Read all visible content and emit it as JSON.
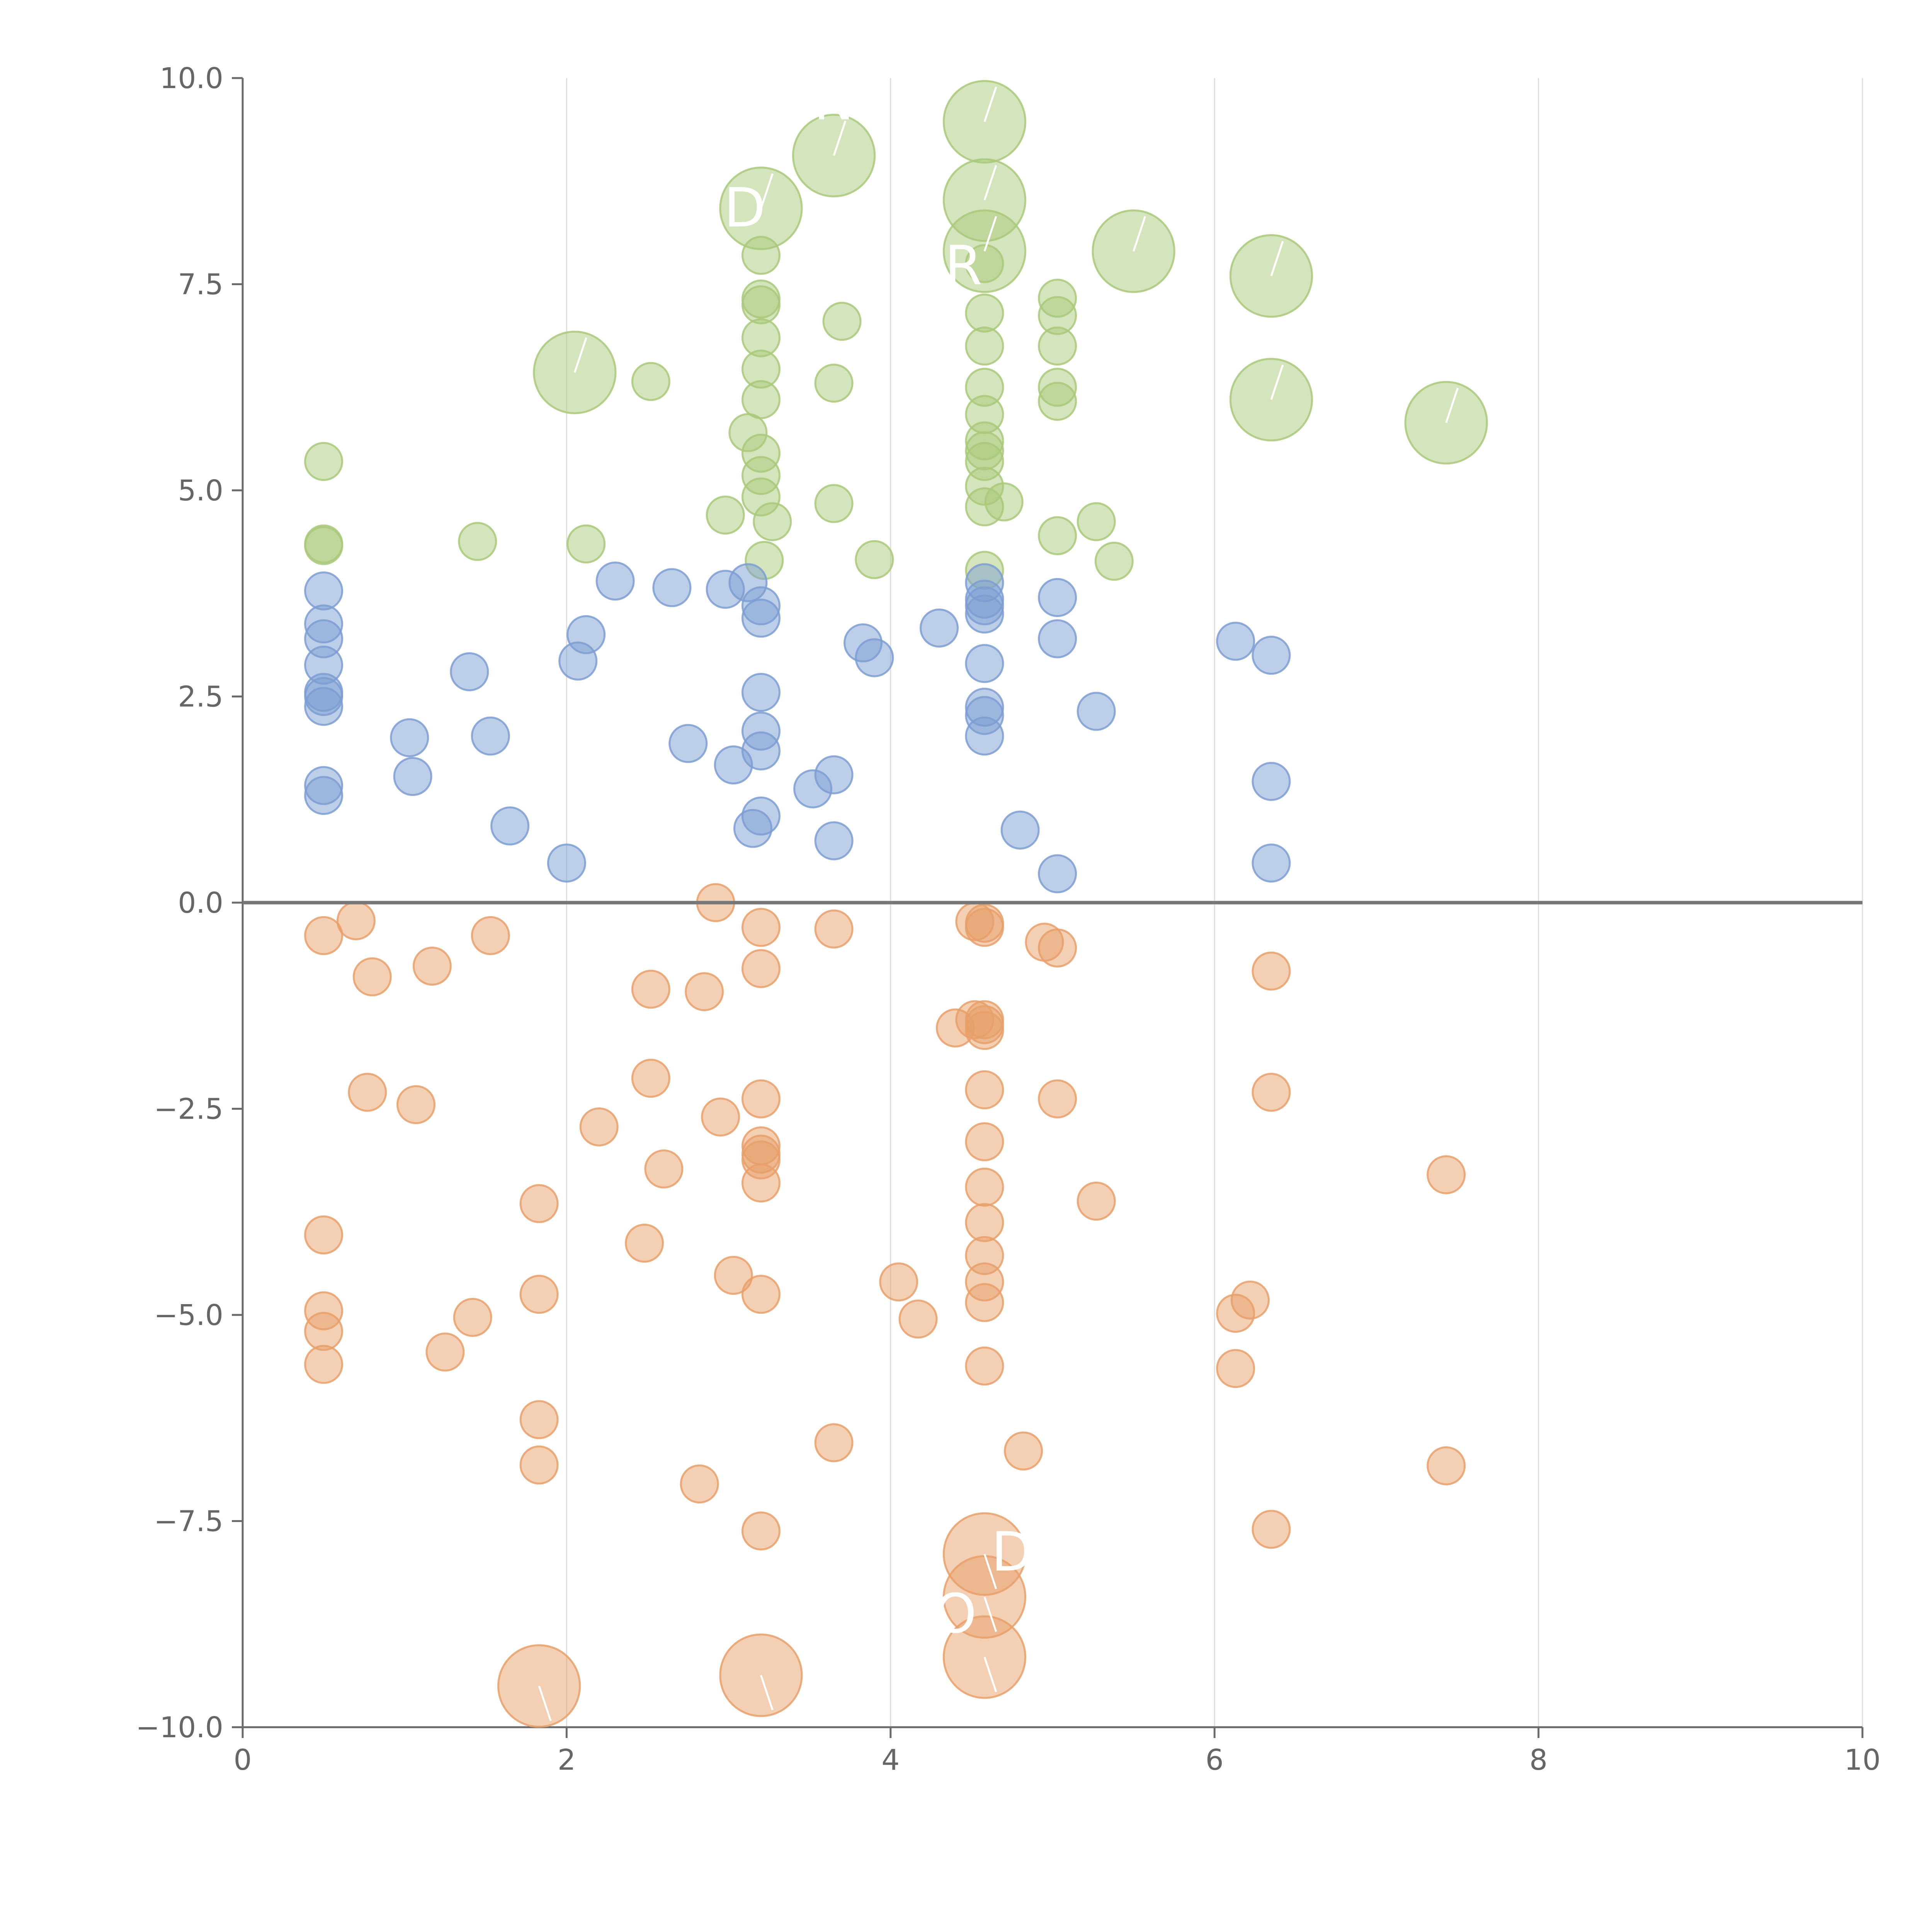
{
  "chart_data": {
    "type": "scatter",
    "title": "",
    "xlabel": "",
    "ylabel": "",
    "xlim": [
      0,
      10
    ],
    "ylim": [
      -10,
      10
    ],
    "x_ticks": [
      "0",
      "2",
      "4",
      "6",
      "8",
      "10"
    ],
    "y_ticks": [
      "−10.0",
      "−7.5",
      "−5.0",
      "−2.5",
      "0.0",
      "2.5",
      "5.0",
      "7.5",
      "10.0"
    ],
    "grid": "vertical",
    "reference_line_y": 0,
    "colors": {
      "green": "#a9c97a",
      "blue": "#7c9ed2",
      "orange": "#e8a06a"
    },
    "series": [
      {
        "color": "green",
        "points": [
          [
            0.5,
            5.35,
            1
          ],
          [
            0.5,
            4.33,
            1
          ],
          [
            0.5,
            4.35,
            1
          ],
          [
            1.45,
            4.38,
            1
          ],
          [
            2.05,
            6.43,
            2.2
          ],
          [
            2.12,
            4.35,
            1
          ],
          [
            2.52,
            6.32,
            1
          ],
          [
            2.98,
            4.7,
            1
          ],
          [
            3.12,
            5.7,
            1
          ],
          [
            3.2,
            8.42,
            2.2
          ],
          [
            3.2,
            7.85,
            1
          ],
          [
            3.2,
            7.32,
            1
          ],
          [
            3.2,
            7.25,
            1
          ],
          [
            3.2,
            6.85,
            1
          ],
          [
            3.2,
            6.47,
            1
          ],
          [
            3.2,
            6.1,
            1
          ],
          [
            3.2,
            5.45,
            1
          ],
          [
            3.2,
            5.18,
            1
          ],
          [
            3.2,
            4.92,
            1
          ],
          [
            3.22,
            4.15,
            1
          ],
          [
            3.27,
            4.62,
            1
          ],
          [
            3.65,
            9.06,
            2.2
          ],
          [
            3.65,
            6.3,
            1
          ],
          [
            3.65,
            4.84,
            1
          ],
          [
            3.7,
            7.05,
            1
          ],
          [
            3.9,
            4.16,
            1
          ],
          [
            4.58,
            9.47,
            2.2
          ],
          [
            4.58,
            8.52,
            2.2
          ],
          [
            4.58,
            7.9,
            2.2
          ],
          [
            4.58,
            7.75,
            1
          ],
          [
            4.58,
            7.15,
            1
          ],
          [
            4.58,
            6.75,
            1
          ],
          [
            4.58,
            6.25,
            1
          ],
          [
            4.58,
            5.92,
            1
          ],
          [
            4.58,
            5.6,
            1
          ],
          [
            4.58,
            5.48,
            1
          ],
          [
            4.58,
            5.35,
            1
          ],
          [
            4.58,
            5.05,
            1
          ],
          [
            4.58,
            4.8,
            1
          ],
          [
            4.58,
            4.03,
            1
          ],
          [
            4.7,
            4.86,
            1
          ],
          [
            5.03,
            7.33,
            1
          ],
          [
            5.03,
            7.12,
            1
          ],
          [
            5.03,
            6.75,
            1
          ],
          [
            5.03,
            6.25,
            1
          ],
          [
            5.03,
            6.08,
            1
          ],
          [
            5.03,
            4.45,
            1
          ],
          [
            5.27,
            4.62,
            1
          ],
          [
            5.38,
            4.14,
            1
          ],
          [
            5.5,
            7.9,
            2.2
          ],
          [
            6.35,
            7.6,
            2.2
          ],
          [
            6.35,
            6.1,
            2.2
          ],
          [
            7.43,
            5.82,
            2.2
          ]
        ]
      },
      {
        "color": "blue",
        "points": [
          [
            0.5,
            3.78,
            1
          ],
          [
            0.5,
            3.38,
            1
          ],
          [
            0.5,
            3.2,
            1
          ],
          [
            0.5,
            2.88,
            1
          ],
          [
            0.5,
            2.55,
            1
          ],
          [
            0.5,
            2.5,
            1
          ],
          [
            0.5,
            2.38,
            1
          ],
          [
            0.5,
            1.42,
            1
          ],
          [
            0.5,
            1.3,
            1
          ],
          [
            1.03,
            2.0,
            1
          ],
          [
            1.05,
            1.53,
            1
          ],
          [
            1.4,
            2.8,
            1
          ],
          [
            1.53,
            2.02,
            1
          ],
          [
            1.65,
            0.93,
            1
          ],
          [
            2.0,
            0.48,
            1
          ],
          [
            2.07,
            2.93,
            1
          ],
          [
            2.12,
            3.25,
            1
          ],
          [
            2.3,
            3.9,
            1
          ],
          [
            2.65,
            3.82,
            1
          ],
          [
            2.75,
            1.93,
            1
          ],
          [
            2.98,
            3.8,
            1
          ],
          [
            3.03,
            1.67,
            1
          ],
          [
            3.12,
            3.88,
            1
          ],
          [
            3.15,
            0.9,
            1
          ],
          [
            3.2,
            3.6,
            1
          ],
          [
            3.2,
            3.45,
            1
          ],
          [
            3.2,
            2.55,
            1
          ],
          [
            3.2,
            2.08,
            1
          ],
          [
            3.2,
            1.84,
            1
          ],
          [
            3.2,
            1.05,
            1
          ],
          [
            3.52,
            1.38,
            1
          ],
          [
            3.65,
            1.55,
            1
          ],
          [
            3.65,
            0.75,
            1
          ],
          [
            3.83,
            3.15,
            1
          ],
          [
            3.9,
            2.97,
            1
          ],
          [
            4.3,
            3.33,
            1
          ],
          [
            4.58,
            3.88,
            1
          ],
          [
            4.58,
            3.68,
            1
          ],
          [
            4.58,
            3.6,
            1
          ],
          [
            4.58,
            3.5,
            1
          ],
          [
            4.58,
            2.9,
            1
          ],
          [
            4.58,
            2.37,
            1
          ],
          [
            4.58,
            2.27,
            1
          ],
          [
            4.58,
            2.02,
            1
          ],
          [
            4.8,
            0.88,
            1
          ],
          [
            5.03,
            3.7,
            1
          ],
          [
            5.03,
            3.2,
            1
          ],
          [
            5.03,
            0.35,
            1
          ],
          [
            5.27,
            2.32,
            1
          ],
          [
            6.13,
            3.17,
            1
          ],
          [
            6.35,
            3.0,
            1
          ],
          [
            6.35,
            1.47,
            1
          ],
          [
            6.35,
            0.48,
            1
          ]
        ]
      },
      {
        "color": "orange",
        "points": [
          [
            0.5,
            -0.4,
            1
          ],
          [
            0.5,
            -4.03,
            1
          ],
          [
            0.5,
            -4.95,
            1
          ],
          [
            0.5,
            -5.2,
            1
          ],
          [
            0.5,
            -5.6,
            1
          ],
          [
            0.7,
            -0.22,
            1
          ],
          [
            0.77,
            -2.3,
            1
          ],
          [
            0.8,
            -0.9,
            1
          ],
          [
            1.07,
            -2.45,
            1
          ],
          [
            1.17,
            -0.77,
            1
          ],
          [
            1.25,
            -5.45,
            1
          ],
          [
            1.42,
            -5.03,
            1
          ],
          [
            1.53,
            -0.4,
            1
          ],
          [
            1.83,
            -3.65,
            1
          ],
          [
            1.83,
            -4.75,
            1
          ],
          [
            1.83,
            -6.27,
            1
          ],
          [
            1.83,
            -6.82,
            1
          ],
          [
            1.83,
            -9.5,
            2.2
          ],
          [
            2.2,
            -2.72,
            1
          ],
          [
            2.48,
            -4.13,
            1
          ],
          [
            2.52,
            -1.05,
            1
          ],
          [
            2.52,
            -2.13,
            1
          ],
          [
            2.6,
            -3.23,
            1
          ],
          [
            2.82,
            -7.05,
            1
          ],
          [
            2.85,
            -1.08,
            1
          ],
          [
            2.92,
            0.0,
            1
          ],
          [
            2.95,
            -2.6,
            1
          ],
          [
            3.03,
            -4.52,
            1
          ],
          [
            3.2,
            -0.3,
            1
          ],
          [
            3.2,
            -0.8,
            1
          ],
          [
            3.2,
            -2.38,
            1
          ],
          [
            3.2,
            -2.95,
            1
          ],
          [
            3.2,
            -3.05,
            1
          ],
          [
            3.2,
            -3.12,
            1
          ],
          [
            3.2,
            -3.4,
            1
          ],
          [
            3.2,
            -4.75,
            1
          ],
          [
            3.2,
            -7.62,
            1
          ],
          [
            3.2,
            -9.37,
            2.2
          ],
          [
            3.65,
            -0.32,
            1
          ],
          [
            3.65,
            -6.55,
            1
          ],
          [
            4.05,
            -4.6,
            1
          ],
          [
            4.17,
            -5.05,
            1
          ],
          [
            4.4,
            -1.52,
            1
          ],
          [
            4.52,
            -1.42,
            1
          ],
          [
            4.52,
            -0.23,
            1
          ],
          [
            4.58,
            -0.25,
            1
          ],
          [
            4.58,
            -0.3,
            1
          ],
          [
            4.58,
            -1.42,
            1
          ],
          [
            4.58,
            -1.48,
            1
          ],
          [
            4.58,
            -1.55,
            1
          ],
          [
            4.58,
            -2.27,
            1
          ],
          [
            4.58,
            -2.9,
            1
          ],
          [
            4.58,
            -3.45,
            1
          ],
          [
            4.58,
            -3.88,
            1
          ],
          [
            4.58,
            -4.28,
            1
          ],
          [
            4.58,
            -4.6,
            1
          ],
          [
            4.58,
            -4.85,
            1
          ],
          [
            4.58,
            -5.62,
            1
          ],
          [
            4.58,
            -7.9,
            2.2
          ],
          [
            4.58,
            -8.42,
            2.2
          ],
          [
            4.58,
            -9.15,
            2.2
          ],
          [
            4.82,
            -6.65,
            1
          ],
          [
            4.95,
            -0.48,
            1
          ],
          [
            5.03,
            -0.55,
            1
          ],
          [
            5.03,
            -2.38,
            1
          ],
          [
            5.27,
            -3.62,
            1
          ],
          [
            6.13,
            -4.98,
            1
          ],
          [
            6.13,
            -5.65,
            1
          ],
          [
            6.22,
            -4.82,
            1
          ],
          [
            6.35,
            -0.83,
            1
          ],
          [
            6.35,
            -2.3,
            1
          ],
          [
            6.35,
            -7.6,
            1
          ],
          [
            7.43,
            -3.3,
            1
          ],
          [
            7.43,
            -6.83,
            1
          ]
        ]
      }
    ],
    "annotations": [
      {
        "text": "N",
        "x": 3.65,
        "y": 9.5
      },
      {
        "text": "D",
        "x": 3.1,
        "y": 8.2
      },
      {
        "text": "R",
        "x": 4.45,
        "y": 7.5
      },
      {
        "text": "D",
        "x": 4.75,
        "y": -8.1
      },
      {
        "text": "O",
        "x": 4.4,
        "y": -8.85
      }
    ]
  }
}
